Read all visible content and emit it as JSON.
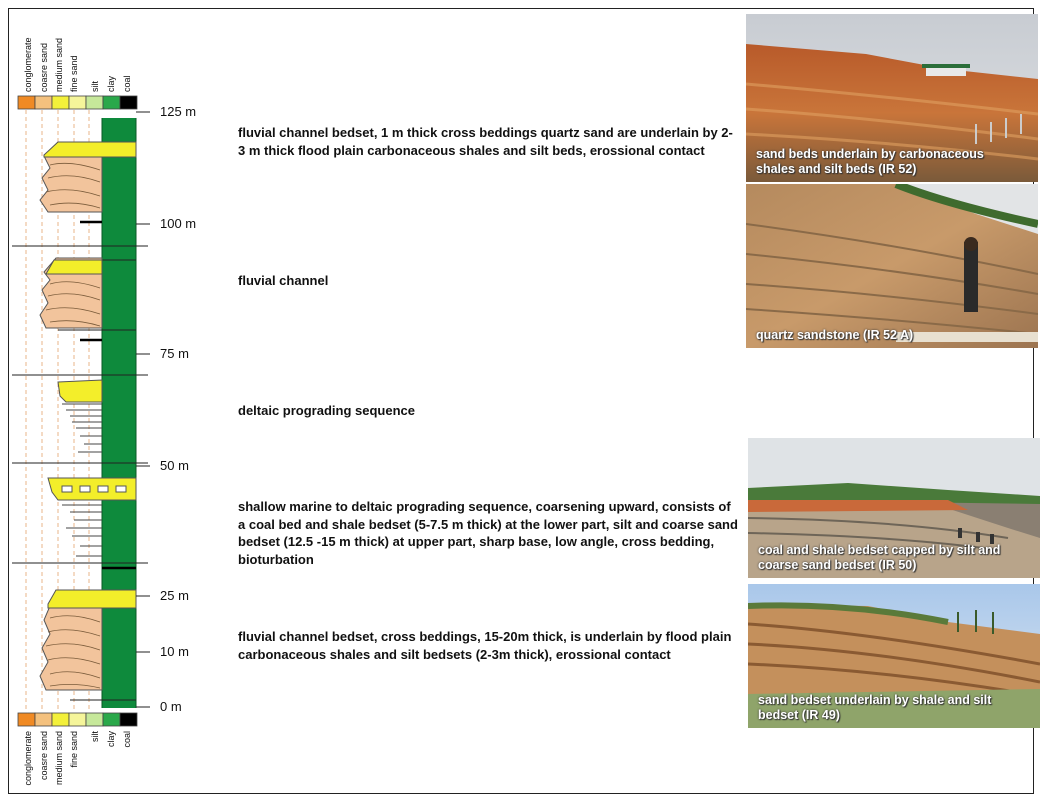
{
  "grain_scale": {
    "top": [
      "conglomerate",
      "coasre sand",
      "medium sand",
      "fine sand",
      "silt",
      "clay",
      "coal"
    ],
    "bottom": [
      "conglomerate",
      "coasre sand",
      "medium sand",
      "fine sand",
      "silt",
      "clay",
      "coal"
    ],
    "colors": [
      "#f08a24",
      "#f4c17e",
      "#f3f03a",
      "#f5f59a",
      "#c6e89a",
      "#2aa84a",
      "#000000"
    ]
  },
  "depth_labels": [
    "125 m",
    "100 m",
    "75 m",
    "50 m",
    "25 m",
    "10 m",
    "0 m"
  ],
  "units": [
    {
      "text": "fluvial channel bedset, 1 m thick cross beddings quartz sand are underlain by 2-3 m thick flood plain carbonaceous shales and silt beds, erossional contact"
    },
    {
      "text": "fluvial channel"
    },
    {
      "text": "deltaic prograding sequence"
    },
    {
      "text": "shallow marine to deltaic prograding sequence, coarsening upward,  consists of  a coal bed  and shale bedset (5-7.5 m thick) at the  lower part,  silt and coarse sand bedset  (12.5 -15 m thick) at upper part,  sharp base, low angle, cross bedding, bioturbation"
    },
    {
      "text": "fluvial channel bedset, cross beddings, 15-20m thick, is  underlain by flood plain carbonaceous shales and silt bedsets (2-3m thick), erossional contact"
    }
  ],
  "photos": [
    {
      "caption": "sand beds underlain by carbonaceous shales and silt beds (IR  52)"
    },
    {
      "caption": "quartz sandstone (IR  52 A)"
    },
    {
      "caption": "coal and shale bedset capped by silt and coarse sand bedset  (IR 50)"
    },
    {
      "caption": "sand bedset underlain by shale and silt bedset  (IR 49)"
    }
  ],
  "colors": {
    "clay_green": "#0e8a3c",
    "sand_tan": "#f2c49c",
    "sand_yellow": "#f3ee2a",
    "grid_dash": "#e8b58a"
  }
}
